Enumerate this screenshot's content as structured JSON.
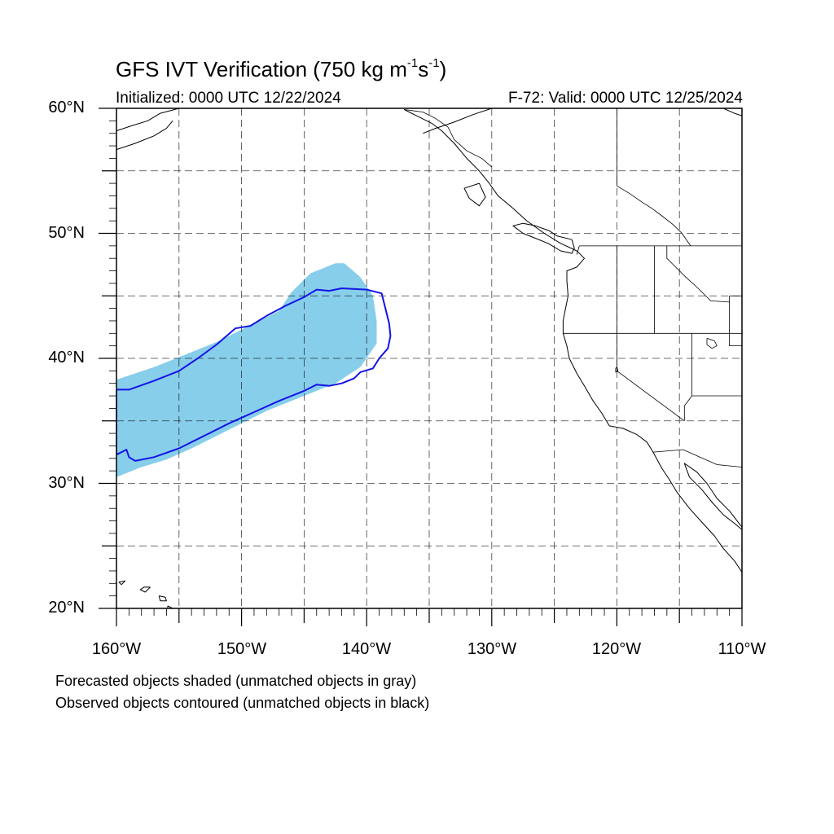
{
  "title": {
    "main": "GFS IVT Verification (750 kg m",
    "exp1": "-1",
    "mid": "s",
    "exp2": "-1",
    "tail": ")"
  },
  "subtitle": {
    "initialized": "Initialized: 0000 UTC 12/22/2024",
    "valid": "F-72: Valid: 0000 UTC 12/25/2024"
  },
  "axes": {
    "lat_labels": [
      "60°N",
      "50°N",
      "40°N",
      "30°N",
      "20°N"
    ],
    "lon_labels": [
      "160°W",
      "150°W",
      "140°W",
      "130°W",
      "120°W",
      "110°W"
    ],
    "lat_range": [
      20,
      60
    ],
    "lon_range": [
      -160,
      -110
    ],
    "grid": true
  },
  "legend": {
    "line1": "Forecasted objects shaded (unmatched objects in gray)",
    "line2": "Observed objects contoured (unmatched objects in black)"
  },
  "colors": {
    "forecast_fill": "#87ceeb",
    "observed_contour": "#1414e6",
    "coastline": "#000000",
    "grid": "#000000"
  },
  "chart_data": {
    "type": "map",
    "projection": "cylindrical-equidistant",
    "forecast_object": {
      "matched": true,
      "polygon_lonlat": [
        [
          -160.0,
          38.3
        ],
        [
          -157.0,
          39.3
        ],
        [
          -155.0,
          40.1
        ],
        [
          -152.0,
          41.3
        ],
        [
          -149.0,
          42.8
        ],
        [
          -147.0,
          43.8
        ],
        [
          -146.0,
          45.3
        ],
        [
          -144.5,
          46.8
        ],
        [
          -142.5,
          47.6
        ],
        [
          -141.8,
          47.6
        ],
        [
          -140.5,
          46.5
        ],
        [
          -139.5,
          45.0
        ],
        [
          -139.2,
          43.0
        ],
        [
          -139.2,
          41.2
        ],
        [
          -140.5,
          39.3
        ],
        [
          -142.5,
          38.0
        ],
        [
          -145.0,
          37.0
        ],
        [
          -148.0,
          35.8
        ],
        [
          -151.0,
          34.3
        ],
        [
          -154.0,
          32.8
        ],
        [
          -156.0,
          31.9
        ],
        [
          -158.0,
          31.3
        ],
        [
          -160.0,
          30.5
        ]
      ]
    },
    "observed_object": {
      "matched": true,
      "polygon_lonlat": [
        [
          -160.0,
          37.5
        ],
        [
          -159.0,
          37.5
        ],
        [
          -157.0,
          38.2
        ],
        [
          -155.0,
          39.0
        ],
        [
          -153.5,
          40.0
        ],
        [
          -152.0,
          41.1
        ],
        [
          -150.5,
          42.4
        ],
        [
          -149.3,
          42.6
        ],
        [
          -148.0,
          43.4
        ],
        [
          -146.5,
          44.2
        ],
        [
          -145.0,
          44.9
        ],
        [
          -144.0,
          45.5
        ],
        [
          -143.0,
          45.4
        ],
        [
          -142.0,
          45.6
        ],
        [
          -140.0,
          45.5
        ],
        [
          -138.8,
          45.2
        ],
        [
          -138.5,
          44.0
        ],
        [
          -138.2,
          42.8
        ],
        [
          -138.1,
          41.8
        ],
        [
          -138.3,
          40.8
        ],
        [
          -139.0,
          40.0
        ],
        [
          -139.5,
          39.2
        ],
        [
          -140.5,
          38.9
        ],
        [
          -141.0,
          38.4
        ],
        [
          -142.0,
          38.0
        ],
        [
          -143.0,
          37.8
        ],
        [
          -144.0,
          37.9
        ],
        [
          -145.0,
          37.4
        ],
        [
          -147.0,
          36.6
        ],
        [
          -149.0,
          35.7
        ],
        [
          -151.0,
          34.8
        ],
        [
          -153.0,
          33.8
        ],
        [
          -155.0,
          32.8
        ],
        [
          -157.0,
          32.1
        ],
        [
          -158.5,
          31.8
        ],
        [
          -159.0,
          32.1
        ],
        [
          -159.2,
          32.7
        ],
        [
          -159.8,
          32.4
        ],
        [
          -160.0,
          32.3
        ]
      ]
    },
    "coastlines_lonlat": [
      [
        [
          -137.0,
          59.9
        ],
        [
          -136.0,
          59.4
        ],
        [
          -134.8,
          58.8
        ],
        [
          -134.0,
          58.2
        ],
        [
          -133.0,
          57.2
        ],
        [
          -132.0,
          56.0
        ],
        [
          -131.0,
          55.0
        ],
        [
          -130.2,
          54.0
        ],
        [
          -129.5,
          53.0
        ],
        [
          -128.3,
          52.0
        ],
        [
          -127.2,
          51.0
        ],
        [
          -125.8,
          50.0
        ],
        [
          -124.5,
          49.2
        ],
        [
          -123.2,
          48.6
        ],
        [
          -122.6,
          48.0
        ],
        [
          -123.2,
          47.3
        ],
        [
          -124.0,
          47.0
        ],
        [
          -124.0,
          46.2
        ],
        [
          -123.9,
          45.0
        ],
        [
          -124.1,
          44.0
        ],
        [
          -124.3,
          43.0
        ],
        [
          -124.3,
          42.0
        ],
        [
          -124.0,
          41.0
        ],
        [
          -123.8,
          40.0
        ],
        [
          -123.2,
          38.8
        ],
        [
          -122.6,
          37.8
        ],
        [
          -121.9,
          36.6
        ],
        [
          -121.2,
          35.6
        ],
        [
          -120.6,
          34.6
        ],
        [
          -119.5,
          34.4
        ],
        [
          -118.4,
          33.9
        ],
        [
          -117.6,
          33.3
        ],
        [
          -117.1,
          32.5
        ],
        [
          -116.4,
          31.2
        ],
        [
          -115.8,
          30.3
        ],
        [
          -115.2,
          29.3
        ],
        [
          -114.2,
          28.0
        ],
        [
          -113.3,
          27.0
        ],
        [
          -112.2,
          25.8
        ],
        [
          -111.5,
          24.8
        ],
        [
          -110.6,
          23.8
        ],
        [
          -110.0,
          22.9
        ]
      ],
      [
        [
          -110.0,
          26.5
        ],
        [
          -111.0,
          27.8
        ],
        [
          -112.0,
          28.8
        ],
        [
          -112.8,
          30.0
        ],
        [
          -113.6,
          30.9
        ],
        [
          -114.6,
          31.6
        ],
        [
          -114.2,
          30.5
        ],
        [
          -113.2,
          29.5
        ],
        [
          -112.4,
          28.5
        ],
        [
          -111.5,
          27.5
        ],
        [
          -110.6,
          26.8
        ],
        [
          -110.0,
          26.3
        ]
      ],
      [
        [
          -160.0,
          58.2
        ],
        [
          -158.8,
          58.6
        ],
        [
          -157.5,
          59.0
        ],
        [
          -156.5,
          59.6
        ],
        [
          -155.0,
          60.0
        ]
      ],
      [
        [
          -160.0,
          56.7
        ],
        [
          -158.5,
          57.2
        ],
        [
          -157.0,
          57.8
        ],
        [
          -156.0,
          58.4
        ],
        [
          -155.5,
          59.0
        ]
      ],
      [
        [
          -130.0,
          60.0
        ],
        [
          -131.5,
          59.5
        ],
        [
          -133.0,
          58.9
        ],
        [
          -134.5,
          58.4
        ],
        [
          -135.5,
          58.0
        ]
      ],
      [
        [
          -111.5,
          60.0
        ],
        [
          -110.6,
          59.6
        ],
        [
          -110.0,
          59.4
        ]
      ],
      [
        [
          -123.6,
          49.5
        ],
        [
          -124.8,
          49.8
        ],
        [
          -125.4,
          50.2
        ],
        [
          -126.5,
          50.6
        ],
        [
          -127.5,
          50.8
        ],
        [
          -128.3,
          50.6
        ],
        [
          -127.5,
          50.0
        ],
        [
          -126.5,
          49.6
        ],
        [
          -125.5,
          49.2
        ],
        [
          -124.5,
          48.6
        ],
        [
          -123.6,
          48.4
        ],
        [
          -123.4,
          48.8
        ],
        [
          -123.6,
          49.5
        ]
      ],
      [
        [
          -131.0,
          54.0
        ],
        [
          -132.2,
          53.6
        ],
        [
          -131.8,
          52.8
        ],
        [
          -131.0,
          52.2
        ],
        [
          -130.5,
          52.9
        ],
        [
          -131.0,
          54.0
        ]
      ],
      [
        [
          -155.9,
          20.2
        ],
        [
          -155.5,
          20.0
        ],
        [
          -155.2,
          19.5
        ],
        [
          -155.6,
          19.0
        ],
        [
          -155.9,
          19.6
        ],
        [
          -155.9,
          20.2
        ]
      ],
      [
        [
          -156.6,
          21.0
        ],
        [
          -156.1,
          20.9
        ],
        [
          -156.0,
          20.6
        ],
        [
          -156.5,
          20.6
        ],
        [
          -156.6,
          21.0
        ]
      ],
      [
        [
          -157.3,
          21.7
        ],
        [
          -157.7,
          21.3
        ],
        [
          -158.1,
          21.5
        ],
        [
          -157.8,
          21.7
        ],
        [
          -157.3,
          21.7
        ]
      ],
      [
        [
          -159.3,
          22.2
        ],
        [
          -159.8,
          22.1
        ],
        [
          -159.6,
          21.9
        ],
        [
          -159.3,
          22.2
        ]
      ]
    ],
    "borders_lonlat": [
      [
        [
          -123.0,
          49.0
        ],
        [
          -110.0,
          49.0
        ]
      ],
      [
        [
          -124.3,
          42.0
        ],
        [
          -110.0,
          42.0
        ]
      ],
      [
        [
          -120.0,
          49.0
        ],
        [
          -120.0,
          42.0
        ]
      ],
      [
        [
          -117.0,
          49.0
        ],
        [
          -117.0,
          46.0
        ],
        [
          -117.0,
          44.5
        ],
        [
          -117.0,
          42.0
        ]
      ],
      [
        [
          -116.0,
          49.0
        ],
        [
          -116.0,
          48.0
        ],
        [
          -115.5,
          47.5
        ],
        [
          -114.5,
          46.5
        ],
        [
          -113.5,
          45.6
        ],
        [
          -112.5,
          44.6
        ],
        [
          -111.0,
          44.5
        ]
      ],
      [
        [
          -111.0,
          45.0
        ],
        [
          -110.0,
          45.0
        ]
      ],
      [
        [
          -111.0,
          45.0
        ],
        [
          -111.0,
          41.0
        ],
        [
          -110.0,
          41.0
        ]
      ],
      [
        [
          -120.0,
          42.0
        ],
        [
          -120.0,
          39.0
        ],
        [
          -114.6,
          35.0
        ]
      ],
      [
        [
          -114.0,
          42.0
        ],
        [
          -114.0,
          37.0
        ],
        [
          -114.6,
          36.2
        ],
        [
          -114.6,
          35.0
        ]
      ],
      [
        [
          -114.0,
          37.0
        ],
        [
          -110.0,
          37.0
        ]
      ],
      [
        [
          -117.1,
          32.5
        ],
        [
          -114.7,
          32.7
        ],
        [
          -112.0,
          31.5
        ],
        [
          -110.0,
          31.3
        ]
      ],
      [
        [
          -123.0,
          49.0
        ],
        [
          -123.2,
          48.3
        ]
      ],
      [
        [
          -137.0,
          59.9
        ],
        [
          -135.5,
          59.7
        ],
        [
          -134.5,
          59.2
        ],
        [
          -133.5,
          58.5
        ],
        [
          -133.0,
          57.5
        ],
        [
          -132.0,
          56.6
        ],
        [
          -130.8,
          56.0
        ],
        [
          -130.0,
          55.3
        ]
      ],
      [
        [
          -120.0,
          60.0
        ],
        [
          -120.0,
          53.8
        ]
      ],
      [
        [
          -120.0,
          53.8
        ],
        [
          -119.0,
          53.2
        ],
        [
          -118.0,
          52.5
        ],
        [
          -117.2,
          52.0
        ],
        [
          -116.4,
          51.4
        ],
        [
          -115.5,
          50.7
        ],
        [
          -114.8,
          50.0
        ],
        [
          -114.1,
          49.0
        ]
      ]
    ],
    "lakes_lonlat": [
      [
        [
          -112.8,
          41.6
        ],
        [
          -112.2,
          41.4
        ],
        [
          -112.0,
          41.0
        ],
        [
          -112.4,
          40.8
        ],
        [
          -112.8,
          41.1
        ],
        [
          -112.8,
          41.6
        ]
      ],
      [
        [
          -120.0,
          39.3
        ],
        [
          -119.9,
          39.0
        ],
        [
          -120.1,
          38.9
        ],
        [
          -120.1,
          39.2
        ],
        [
          -120.0,
          39.3
        ]
      ]
    ]
  }
}
